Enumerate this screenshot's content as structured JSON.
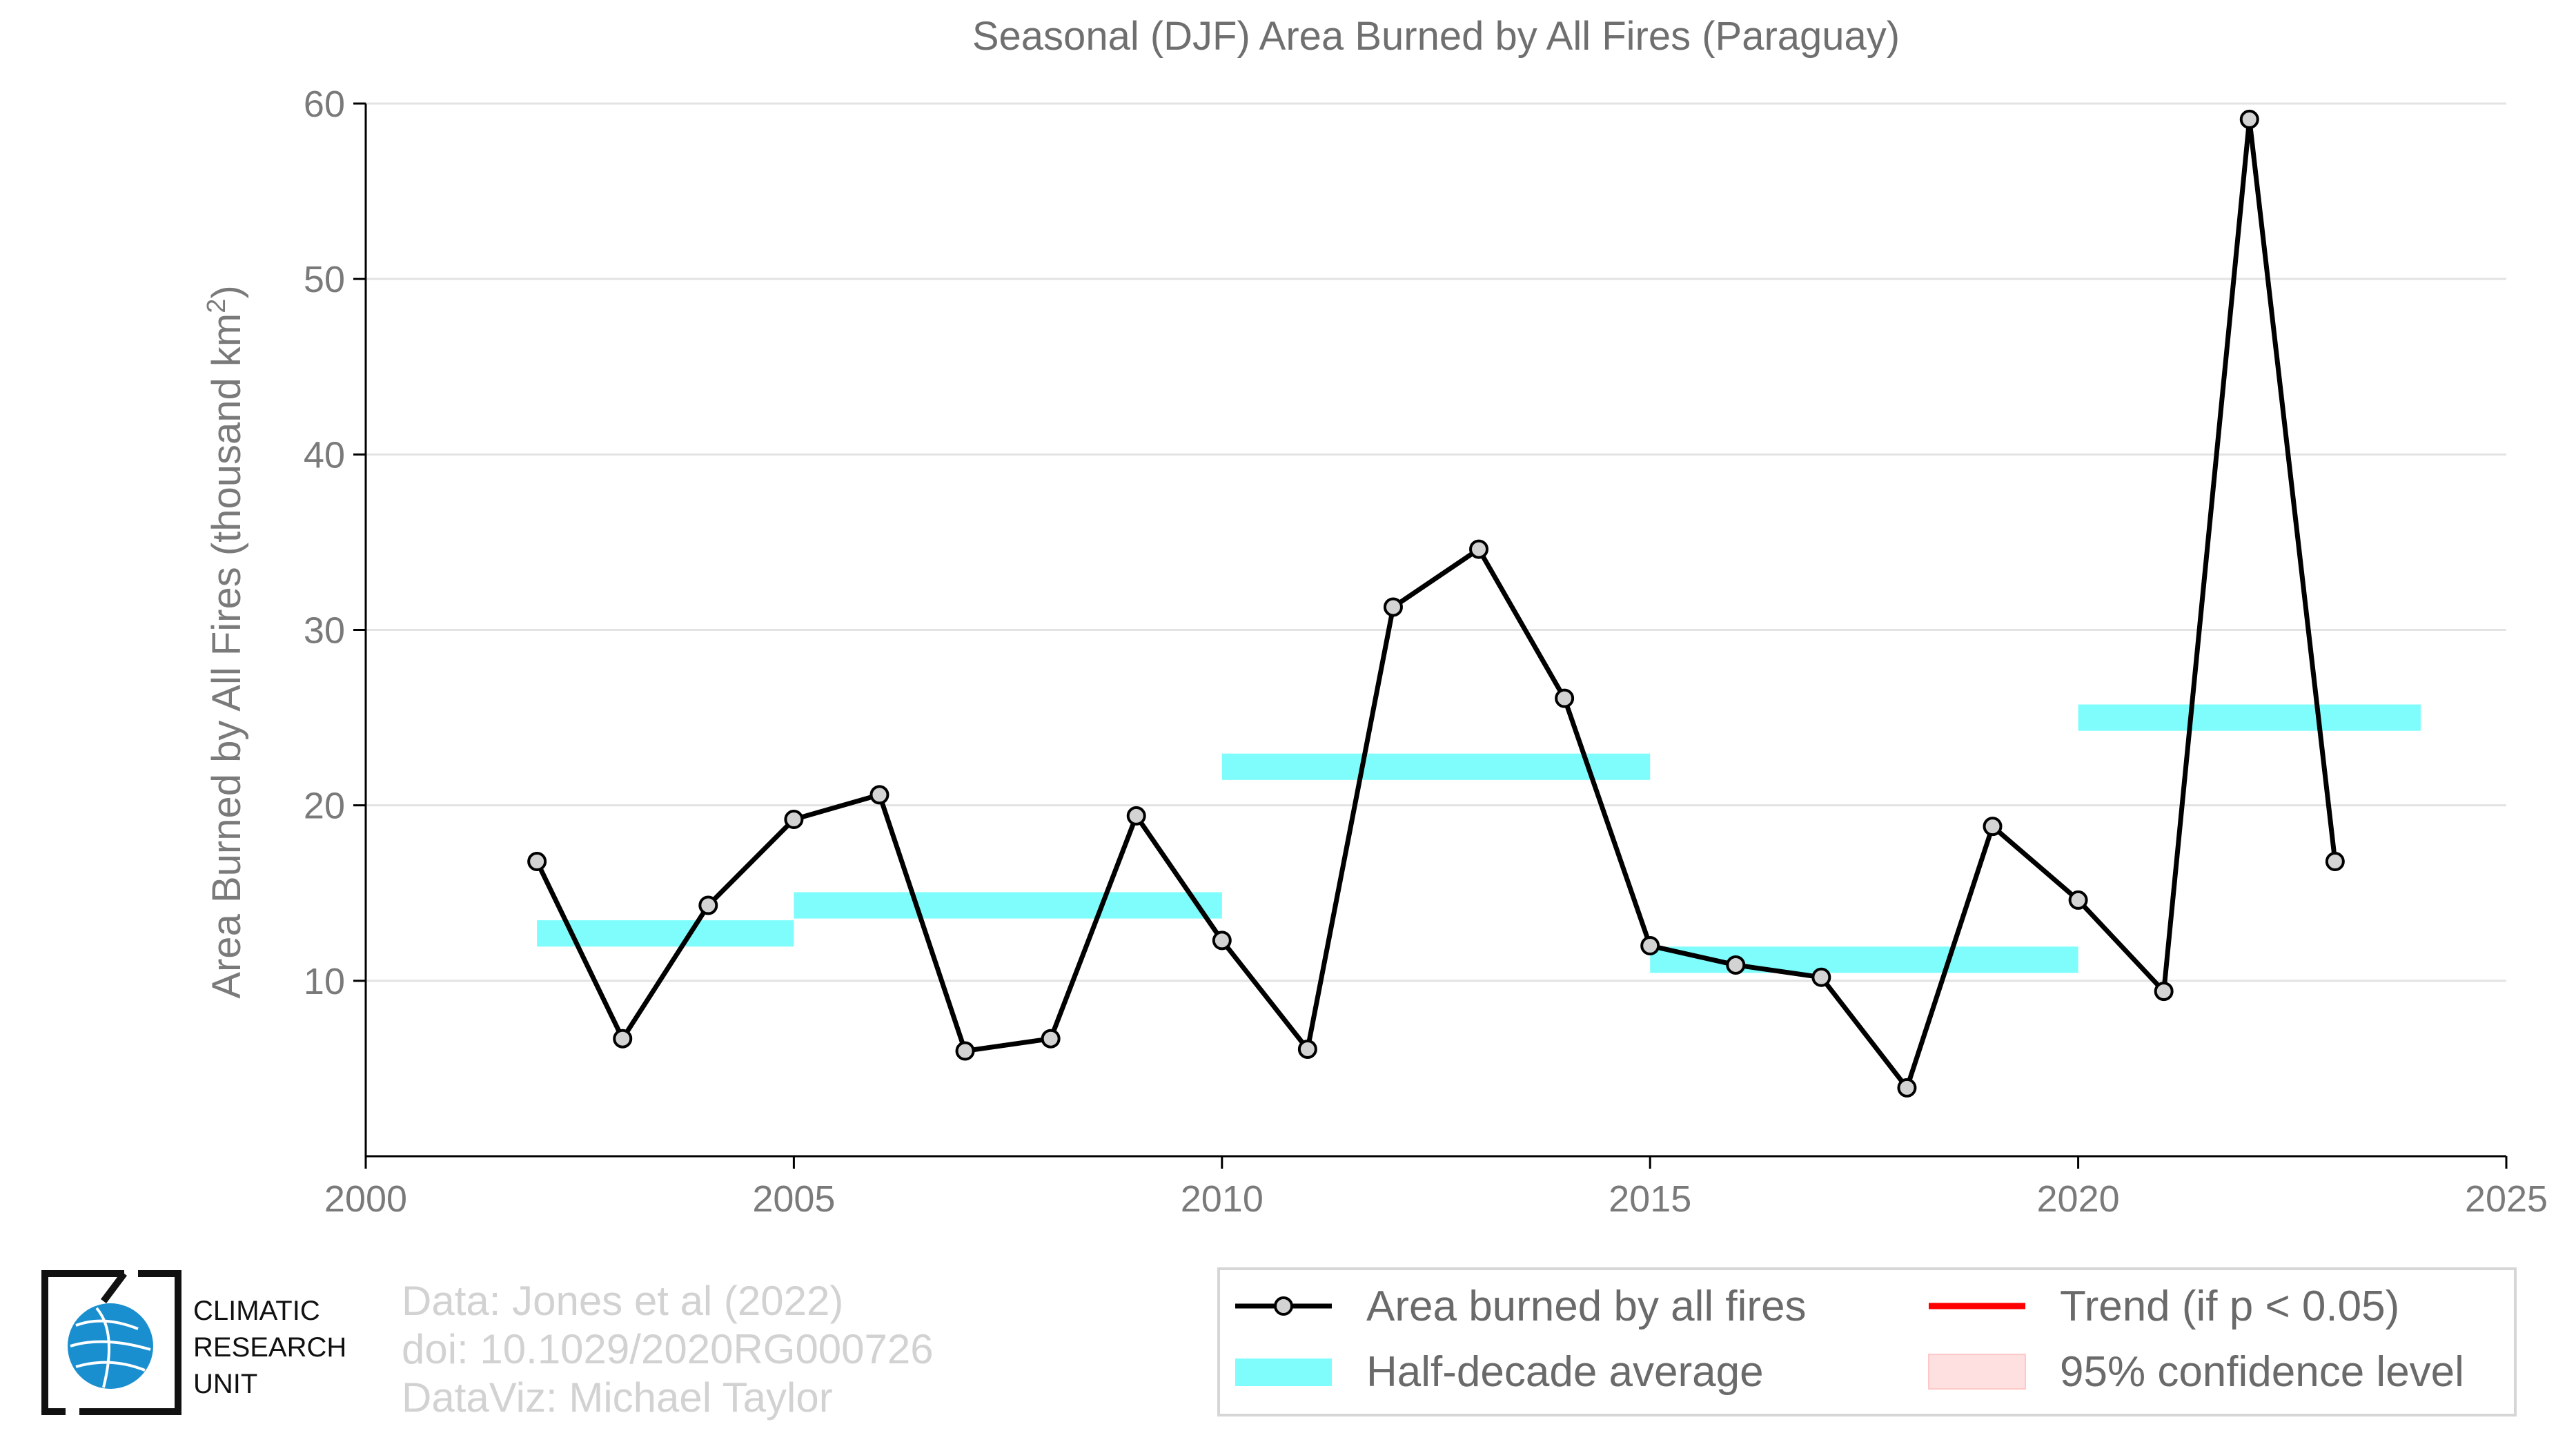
{
  "chart_data": {
    "type": "line",
    "title": "Seasonal (DJF) Area Burned by All Fires (Paraguay)",
    "xlabel": "",
    "ylabel": "Area Burned by All Fires (thousand km",
    "ylabel_sup": "2",
    "ylabel_close": ")",
    "xlim": [
      2000,
      2025
    ],
    "ylim": [
      0,
      60
    ],
    "x_ticks": [
      2000,
      2005,
      2010,
      2015,
      2020,
      2025
    ],
    "y_ticks": [
      10,
      20,
      30,
      40,
      50,
      60
    ],
    "grid": "horizontal",
    "legend_position": "bottom-right",
    "series": [
      {
        "name": "Area burned by all fires",
        "color": "#000000",
        "marker_fill": "#d3d3d3",
        "x": [
          2002,
          2003,
          2004,
          2005,
          2006,
          2007,
          2008,
          2009,
          2010,
          2011,
          2012,
          2013,
          2014,
          2015,
          2016,
          2017,
          2018,
          2019,
          2020,
          2021,
          2022,
          2023
        ],
        "y": [
          16.8,
          6.7,
          14.3,
          19.2,
          20.6,
          6.0,
          6.7,
          19.4,
          12.3,
          6.1,
          31.3,
          34.6,
          26.1,
          12.0,
          10.9,
          10.2,
          3.9,
          18.8,
          14.6,
          9.4,
          59.1,
          16.8
        ]
      }
    ],
    "half_decade_average": {
      "name": "Half-decade average",
      "color": "#7ffcfc",
      "segments": [
        {
          "x_start": 2002,
          "x_end": 2005,
          "value": 12.7
        },
        {
          "x_start": 2005,
          "x_end": 2010,
          "value": 14.3
        },
        {
          "x_start": 2010,
          "x_end": 2015,
          "value": 22.2
        },
        {
          "x_start": 2015,
          "x_end": 2020,
          "value": 11.2
        },
        {
          "x_start": 2020,
          "x_end": 2024,
          "value": 25.0
        }
      ]
    },
    "legend": [
      {
        "key": "line",
        "label": "Area burned by all fires"
      },
      {
        "key": "trend",
        "label": "Trend (if p < 0.05)",
        "color": "#ff0000"
      },
      {
        "key": "band",
        "label": "Half-decade average",
        "color": "#7ffcfc"
      },
      {
        "key": "ci",
        "label": "95% confidence level",
        "color": "#ffe0e0"
      }
    ]
  },
  "credits": {
    "line1": "Data: Jones et al (2022)",
    "line2": "doi: 10.1029/2020RG000726",
    "line3": "DataViz: Michael Taylor"
  },
  "logo": {
    "icon": "globe-icon",
    "line1": "CLIMATIC",
    "line2": "RESEARCH",
    "line3": "UNIT",
    "color": "#1a8fd0"
  }
}
